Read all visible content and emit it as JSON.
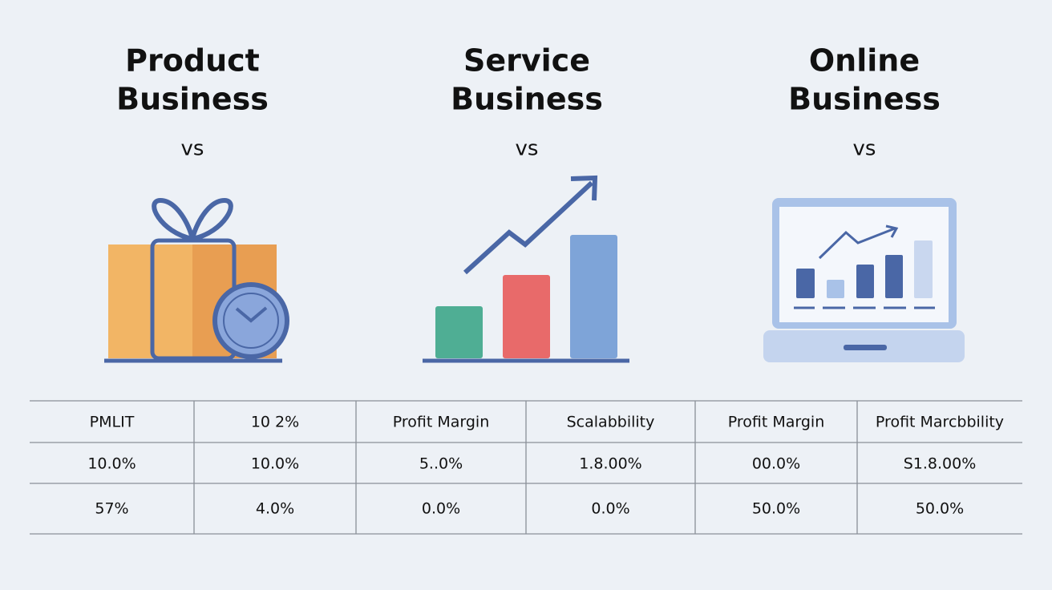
{
  "columns": [
    {
      "title": [
        "Product",
        "Business"
      ],
      "subtitle": "vs"
    },
    {
      "title": [
        "Service",
        "Business"
      ],
      "subtitle": "vs"
    },
    {
      "title": [
        "Online",
        "Business"
      ],
      "subtitle": "vs"
    }
  ],
  "table": {
    "rows": [
      [
        "PMLIT",
        "10 2%",
        "Profit Margin",
        "Scalabbility",
        "Profit Margin",
        "Profit Marcbbility"
      ],
      [
        "10.0%",
        "10.0%",
        "5..0%",
        "1.8.00%",
        "00.0%",
        "S1.8.00%"
      ],
      [
        "57%",
        "4.0%",
        "0.0%",
        "0.0%",
        "50.0%",
        "50.0%"
      ]
    ]
  }
}
